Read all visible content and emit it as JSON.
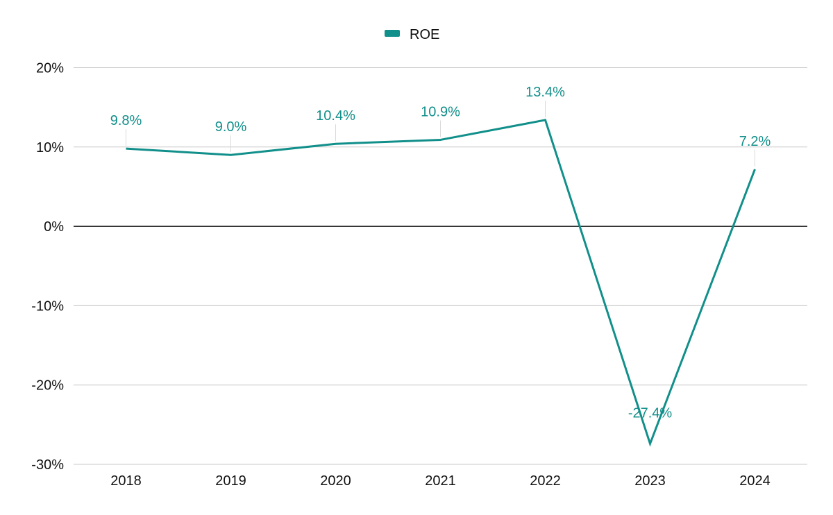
{
  "chart_data": {
    "type": "line",
    "title": "",
    "xlabel": "",
    "ylabel": "",
    "categories": [
      "2018",
      "2019",
      "2020",
      "2021",
      "2022",
      "2023",
      "2024"
    ],
    "series": [
      {
        "name": "ROE",
        "color": "#118f8a",
        "values": [
          9.8,
          9.0,
          10.4,
          10.9,
          13.4,
          -27.4,
          7.2
        ],
        "labels": [
          "9.8%",
          "9.0%",
          "10.4%",
          "10.9%",
          "13.4%",
          "-27.4%",
          "7.2%"
        ]
      }
    ],
    "ylim": [
      -30,
      20
    ],
    "yticks": [
      20,
      10,
      0,
      -10,
      -20,
      -30
    ],
    "ytick_labels": [
      "20%",
      "10%",
      "0%",
      "-10%",
      "-20%",
      "-30%"
    ],
    "grid": true,
    "legend": "top-center"
  }
}
